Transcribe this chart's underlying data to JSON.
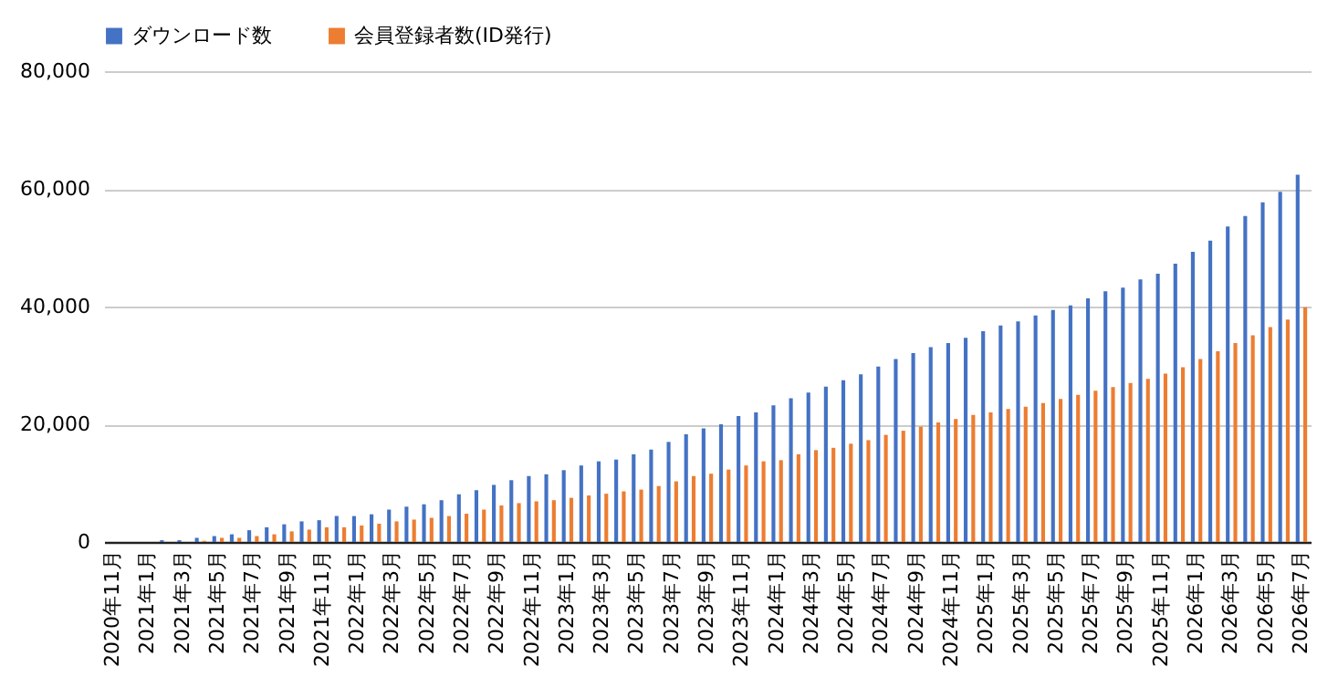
{
  "chart_data": {
    "type": "bar",
    "categories": [
      "2020年11月",
      null,
      "2021年1月",
      null,
      "2021年3月",
      null,
      "2021年5月",
      null,
      "2021年7月",
      null,
      "2021年9月",
      null,
      "2021年11月",
      null,
      "2022年1月",
      null,
      "2022年3月",
      null,
      "2022年5月",
      null,
      "2022年7月",
      null,
      "2022年9月",
      null,
      "2022年11月",
      null,
      "2023年1月",
      null,
      "2023年3月",
      null,
      "2023年5月",
      null,
      "2023年7月",
      null,
      "2023年9月",
      null,
      "2023年11月",
      null,
      "2024年1月",
      null,
      "2024年3月",
      null,
      "2024年5月",
      null,
      "2024年7月",
      null,
      "2024年9月",
      null,
      "2024年11月",
      null,
      "2025年1月",
      null,
      "2025年3月",
      null,
      "2025年5月",
      null,
      "2025年7月",
      null,
      "2025年9月",
      null,
      "2025年11月",
      null,
      "2026年1月",
      null,
      "2026年3月",
      null,
      "2026年5月",
      null,
      "2026年7月"
    ],
    "series": [
      {
        "name": "ダウンロード数",
        "color": "#4472c4",
        "values": [
          0,
          0,
          0,
          300,
          300,
          700,
          1000,
          1300,
          2000,
          2500,
          3000,
          3500,
          3700,
          4400,
          4400,
          4700,
          5500,
          6000,
          6400,
          7100,
          8100,
          8800,
          9700,
          10500,
          11200,
          11500,
          12200,
          13000,
          13700,
          14000,
          14900,
          15700,
          17000,
          18300,
          19300,
          20000,
          21400,
          22000,
          23200,
          24400,
          25400,
          26400,
          27500,
          28500,
          29800,
          31100,
          32100,
          33100,
          33800,
          34700,
          35800,
          36800,
          37500,
          38500,
          39400,
          40200,
          41400,
          42600,
          43200,
          44600,
          45600,
          47300,
          49300,
          51200,
          53600,
          55400,
          57700,
          59500,
          62400
        ]
      },
      {
        "name": "会員登録者数(ID発行)",
        "color": "#ed7d31",
        "values": [
          0,
          0,
          0,
          0,
          0,
          200,
          700,
          700,
          1000,
          1300,
          1800,
          2100,
          2500,
          2500,
          2800,
          3100,
          3500,
          3800,
          4100,
          4400,
          4800,
          5500,
          6200,
          6600,
          6900,
          7100,
          7500,
          7900,
          8200,
          8600,
          8900,
          9500,
          10300,
          11200,
          11600,
          12300,
          13000,
          13700,
          13900,
          14900,
          15600,
          16000,
          16700,
          17300,
          18200,
          18900,
          19600,
          20300,
          20900,
          21600,
          22000,
          22600,
          23000,
          23600,
          24300,
          25000,
          25700,
          26300,
          27000,
          27700,
          28600,
          29700,
          31100,
          32400,
          33800,
          35100,
          36500,
          37800,
          39900
        ]
      }
    ],
    "ylim": [
      0,
      80000
    ],
    "yticks": [
      0,
      {
        "value": 20000,
        "label": "20,000"
      },
      {
        "value": 40000,
        "label": "40,000"
      },
      {
        "value": 60000,
        "label": "60,000"
      },
      {
        "value": 80000,
        "label": "80,000"
      }
    ],
    "grid": "y",
    "legend": "top"
  }
}
